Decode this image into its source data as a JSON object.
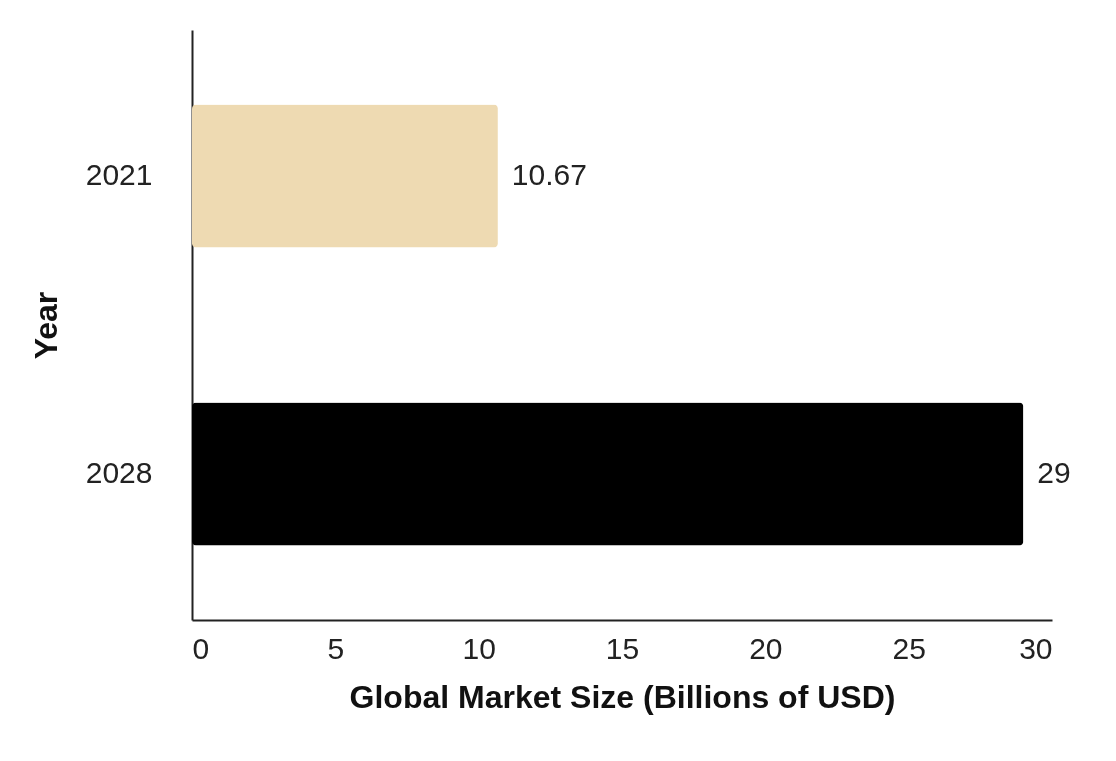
{
  "chart_data": {
    "type": "bar",
    "orientation": "horizontal",
    "categories": [
      "2021",
      "2028"
    ],
    "values": [
      10.67,
      29
    ],
    "colors": [
      "#eedab2",
      "#000000"
    ],
    "xlim": [
      0,
      30
    ],
    "xticks": [
      0,
      5,
      10,
      15,
      20,
      25,
      30
    ],
    "xlabel": "Global Market Size (Billions of USD)",
    "ylabel": "Year",
    "data_labels": true,
    "grid": false
  }
}
